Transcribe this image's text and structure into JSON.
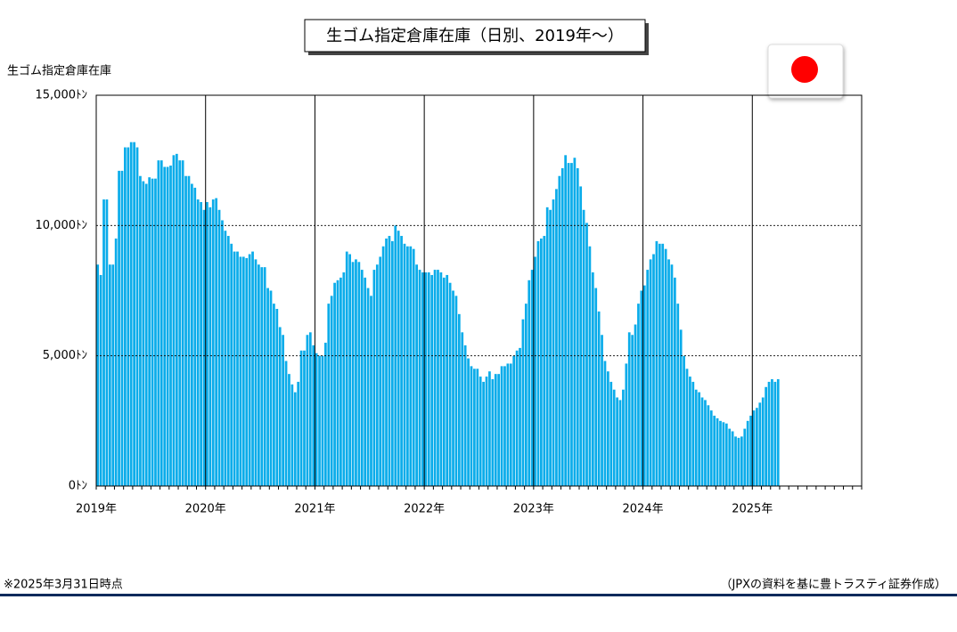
{
  "chart_data": {
    "type": "bar",
    "title": "生ゴム指定倉庫在庫（日別、2019年～）",
    "y_label": "生ゴム指定倉庫在庫",
    "note": "※2025年3月31日時点",
    "source": "（JPXの資料を基に豊トラスティ証券作成）",
    "color": "#0aacea",
    "values": [
      8500,
      8100,
      11000,
      11000,
      8500,
      8500,
      9500,
      12100,
      12100,
      13000,
      13000,
      13200,
      13200,
      13000,
      11900,
      11700,
      11600,
      11850,
      11800,
      11800,
      12500,
      12500,
      12250,
      12250,
      12300,
      12700,
      12750,
      12500,
      12500,
      11900,
      11900,
      11600,
      11450,
      11000,
      10900,
      10600,
      10900,
      10700,
      11000,
      11050,
      10600,
      10200,
      9800,
      9600,
      9300,
      9000,
      9000,
      8800,
      8800,
      8750,
      8900,
      9000,
      8700,
      8500,
      8400,
      8400,
      7600,
      7500,
      7000,
      6800,
      6100,
      5800,
      4800,
      4300,
      3900,
      3600,
      4000,
      5200,
      5200,
      5800,
      5900,
      5400,
      5100,
      5000,
      5000,
      5500,
      7000,
      7300,
      7800,
      7900,
      8000,
      8200,
      9000,
      8900,
      8600,
      8700,
      8600,
      8300,
      8000,
      7600,
      7300,
      8300,
      8500,
      8800,
      9200,
      9500,
      9600,
      9400,
      10000,
      9800,
      9600,
      9300,
      9200,
      9200,
      9100,
      8500,
      8300,
      8200,
      8200,
      8200,
      8100,
      8300,
      8300,
      8200,
      8000,
      8100,
      7800,
      7500,
      7300,
      6600,
      5900,
      5400,
      4900,
      4600,
      4500,
      4500,
      4200,
      4000,
      4200,
      4400,
      4100,
      4300,
      4300,
      4600,
      4600,
      4700,
      4700,
      5000,
      5200,
      5300,
      6400,
      7000,
      7900,
      8300,
      8800,
      9400,
      9500,
      9600,
      10700,
      10600,
      11000,
      11400,
      11900,
      12200,
      12700,
      12400,
      12400,
      12600,
      12200,
      11500,
      10600,
      10100,
      9200,
      8200,
      7600,
      6700,
      5800,
      4800,
      4400,
      4000,
      3700,
      3400,
      3300,
      3700,
      4700,
      5900,
      5800,
      6200,
      7000,
      7500,
      7700,
      8300,
      8700,
      8900,
      9400,
      9300,
      9300,
      9100,
      8700,
      8500,
      8000,
      7000,
      6000,
      5000,
      4500,
      4200,
      4000,
      3700,
      3600,
      3400,
      3300,
      3100,
      2900,
      2700,
      2600,
      2500,
      2450,
      2400,
      2200,
      2100,
      1900,
      1850,
      1900,
      2200,
      2500,
      2700,
      2900,
      3000,
      3200,
      3400,
      3800,
      4000,
      4100,
      4000,
      4100
    ],
    "xlim": [
      0,
      252
    ],
    "xticks": [
      {
        "value": 0,
        "label": "2019年"
      },
      {
        "value": 36,
        "label": "2020年"
      },
      {
        "value": 72,
        "label": "2021年"
      },
      {
        "value": 108,
        "label": "2022年"
      },
      {
        "value": 144,
        "label": "2023年"
      },
      {
        "value": 180,
        "label": "2024年"
      },
      {
        "value": 216,
        "label": "2025年"
      }
    ],
    "ylim": [
      0,
      15000
    ],
    "yticks": [
      {
        "value": 0,
        "label": "0ﾄﾝ"
      },
      {
        "value": 5000,
        "label": "5,000ﾄﾝ"
      },
      {
        "value": 10000,
        "label": "10,000ﾄﾝ"
      },
      {
        "value": 15000,
        "label": "15,000ﾄﾝ"
      }
    ],
    "grid": true
  }
}
